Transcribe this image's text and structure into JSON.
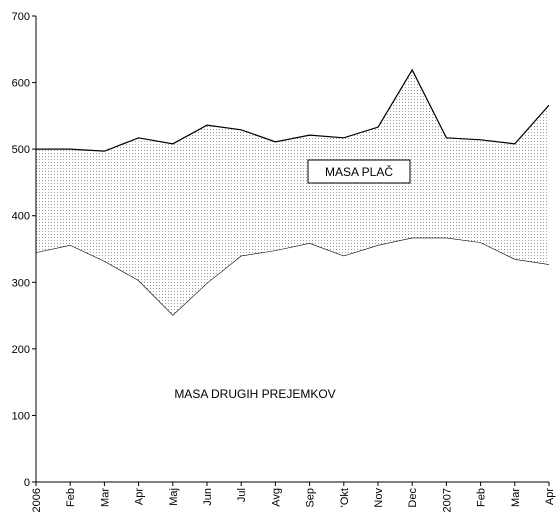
{
  "chart_data": {
    "type": "area",
    "stacked": true,
    "categories": [
      "2006",
      "Feb",
      "Mar",
      "Apr",
      "Maj",
      "Jun",
      "Jul",
      "Avg",
      "Sep",
      "'Okt",
      "Nov",
      "Dec",
      "2007",
      "Feb",
      "Mar",
      "Apr"
    ],
    "series": [
      {
        "name": "MASA DRUGIH PREJEMKOV",
        "color": "#ffffff",
        "values": [
          345,
          356,
          332,
          303,
          251,
          299,
          340,
          348,
          359,
          340,
          356,
          367,
          367,
          360,
          335,
          327
        ]
      },
      {
        "name": "MASA PLAČ",
        "color": "#d9d9d9",
        "values": [
          155,
          144,
          165,
          214,
          257,
          237,
          189,
          163,
          162,
          177,
          177,
          252,
          150,
          154,
          173,
          239
        ]
      }
    ],
    "ylim": [
      0,
      700
    ],
    "yticks": [
      0,
      100,
      200,
      300,
      400,
      500,
      600,
      700
    ],
    "grid": false
  }
}
